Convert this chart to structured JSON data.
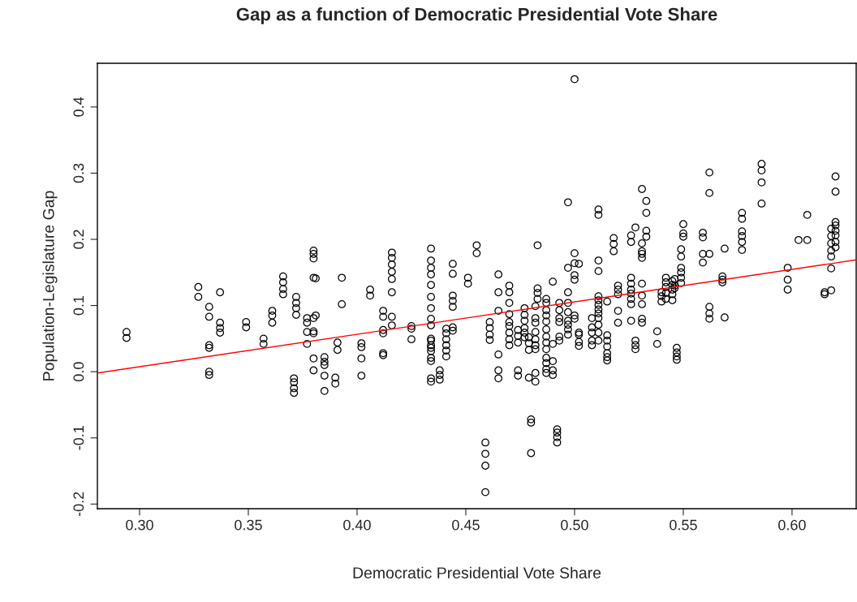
{
  "chart_data": {
    "type": "scatter",
    "title": "Gap as a function of Democratic Presidential Vote Share",
    "xlabel": "Democratic Presidential Vote Share",
    "ylabel": "Population-Legislature Gap",
    "xlim": [
      0.2806,
      0.6295
    ],
    "ylim": [
      -0.207,
      0.466
    ],
    "xticks": [
      {
        "value": 0.3,
        "label": "0.30"
      },
      {
        "value": 0.35,
        "label": "0.35"
      },
      {
        "value": 0.4,
        "label": "0.40"
      },
      {
        "value": 0.45,
        "label": "0.45"
      },
      {
        "value": 0.5,
        "label": "0.50"
      },
      {
        "value": 0.55,
        "label": "0.55"
      },
      {
        "value": 0.6,
        "label": "0.60"
      }
    ],
    "yticks": [
      {
        "value": -0.2,
        "label": "-0.2"
      },
      {
        "value": -0.1,
        "label": "-0.1"
      },
      {
        "value": 0.0,
        "label": "0.0"
      },
      {
        "value": 0.1,
        "label": "0.1"
      },
      {
        "value": 0.2,
        "label": "0.2"
      },
      {
        "value": 0.3,
        "label": "0.3"
      },
      {
        "value": 0.4,
        "label": "0.4"
      }
    ],
    "grid": false,
    "legend": false,
    "series": [
      {
        "marker": "circle",
        "color": "#000000",
        "x": [
          0.294,
          0.294,
          0.327,
          0.327,
          0.332,
          0.332,
          0.332,
          0.332,
          0.332,
          0.332,
          0.337,
          0.337,
          0.337,
          0.337,
          0.349,
          0.349,
          0.357,
          0.357,
          0.361,
          0.361,
          0.361,
          0.366,
          0.366,
          0.366,
          0.366,
          0.371,
          0.371,
          0.371,
          0.371,
          0.372,
          0.372,
          0.372,
          0.372,
          0.377,
          0.377,
          0.377,
          0.377,
          0.38,
          0.38,
          0.38,
          0.38,
          0.38,
          0.38,
          0.38,
          0.38,
          0.38,
          0.381,
          0.381,
          0.385,
          0.385,
          0.385,
          0.385,
          0.385,
          0.39,
          0.39,
          0.391,
          0.391,
          0.393,
          0.393,
          0.402,
          0.402,
          0.402,
          0.402,
          0.406,
          0.406,
          0.412,
          0.412,
          0.412,
          0.412,
          0.412,
          0.412,
          0.416,
          0.416,
          0.416,
          0.416,
          0.416,
          0.416,
          0.416,
          0.416,
          0.425,
          0.425,
          0.425,
          0.434,
          0.434,
          0.434,
          0.434,
          0.434,
          0.434,
          0.434,
          0.434,
          0.434,
          0.434,
          0.434,
          0.434,
          0.434,
          0.434,
          0.434,
          0.434,
          0.434,
          0.434,
          0.438,
          0.438,
          0.438,
          0.441,
          0.441,
          0.441,
          0.441,
          0.441,
          0.441,
          0.444,
          0.444,
          0.444,
          0.444,
          0.444,
          0.444,
          0.444,
          0.451,
          0.451,
          0.455,
          0.455,
          0.459,
          0.459,
          0.459,
          0.459,
          0.461,
          0.461,
          0.461,
          0.461,
          0.465,
          0.465,
          0.465,
          0.465,
          0.465,
          0.465,
          0.47,
          0.47,
          0.47,
          0.47,
          0.47,
          0.47,
          0.47,
          0.47,
          0.47,
          0.474,
          0.474,
          0.474,
          0.474,
          0.474,
          0.477,
          0.477,
          0.477,
          0.477,
          0.477,
          0.477,
          0.479,
          0.479,
          0.479,
          0.479,
          0.48,
          0.48,
          0.48,
          0.482,
          0.482,
          0.482,
          0.482,
          0.482,
          0.482,
          0.482,
          0.482,
          0.482,
          0.483,
          0.483,
          0.483,
          0.483,
          0.487,
          0.487,
          0.487,
          0.487,
          0.487,
          0.487,
          0.487,
          0.487,
          0.487,
          0.487,
          0.487,
          0.487,
          0.487,
          0.49,
          0.49,
          0.49,
          0.49,
          0.49,
          0.492,
          0.492,
          0.492,
          0.492,
          0.493,
          0.493,
          0.493,
          0.493,
          0.493,
          0.493,
          0.497,
          0.497,
          0.497,
          0.497,
          0.497,
          0.497,
          0.497,
          0.497,
          0.497,
          0.5,
          0.5,
          0.5,
          0.5,
          0.5,
          0.5,
          0.5,
          0.502,
          0.502,
          0.502,
          0.502,
          0.502,
          0.508,
          0.508,
          0.508,
          0.508,
          0.508,
          0.511,
          0.511,
          0.511,
          0.511,
          0.511,
          0.511,
          0.511,
          0.511,
          0.511,
          0.511,
          0.511,
          0.511,
          0.511,
          0.515,
          0.515,
          0.515,
          0.515,
          0.515,
          0.515,
          0.515,
          0.518,
          0.518,
          0.518,
          0.52,
          0.52,
          0.52,
          0.52,
          0.52,
          0.526,
          0.526,
          0.526,
          0.526,
          0.526,
          0.526,
          0.526,
          0.526,
          0.526,
          0.528,
          0.528,
          0.528,
          0.528,
          0.531,
          0.531,
          0.531,
          0.531,
          0.531,
          0.531,
          0.531,
          0.531,
          0.531,
          0.531,
          0.533,
          0.533,
          0.533,
          0.533,
          0.538,
          0.538,
          0.54,
          0.54,
          0.54,
          0.542,
          0.542,
          0.542,
          0.542,
          0.542,
          0.545,
          0.545,
          0.545,
          0.545,
          0.545,
          0.546,
          0.546,
          0.546,
          0.547,
          0.547,
          0.547,
          0.547,
          0.549,
          0.549,
          0.549,
          0.549,
          0.549,
          0.549,
          0.55,
          0.55,
          0.55,
          0.559,
          0.559,
          0.559,
          0.559,
          0.562,
          0.562,
          0.562,
          0.562,
          0.562,
          0.562,
          0.568,
          0.568,
          0.568,
          0.569,
          0.569,
          0.577,
          0.577,
          0.577,
          0.577,
          0.577,
          0.577,
          0.586,
          0.586,
          0.586,
          0.586,
          0.598,
          0.598,
          0.598,
          0.603,
          0.607,
          0.607,
          0.615,
          0.615,
          0.618,
          0.618,
          0.618,
          0.618,
          0.618,
          0.618,
          0.618,
          0.62,
          0.62,
          0.62,
          0.62,
          0.62,
          0.62,
          0.62,
          0.62
        ],
        "values": [
          0.06,
          0.051,
          0.128,
          0.113,
          0.098,
          0.083,
          0.04,
          0.036,
          0.0,
          -0.005,
          0.12,
          0.074,
          0.066,
          0.059,
          0.075,
          0.067,
          0.05,
          0.042,
          0.092,
          0.085,
          0.074,
          0.144,
          0.135,
          0.125,
          0.117,
          -0.01,
          -0.016,
          -0.025,
          -0.032,
          0.113,
          0.104,
          0.096,
          0.086,
          0.081,
          0.074,
          0.06,
          0.042,
          0.183,
          0.178,
          0.171,
          0.142,
          0.081,
          0.061,
          0.058,
          0.02,
          0.002,
          0.085,
          0.141,
          -0.029,
          0.01,
          0.015,
          0.022,
          -0.006,
          -0.009,
          -0.018,
          0.044,
          0.033,
          0.142,
          0.102,
          0.043,
          0.037,
          0.02,
          -0.006,
          0.124,
          0.115,
          0.092,
          0.083,
          0.063,
          0.058,
          0.028,
          0.025,
          0.18,
          0.172,
          0.162,
          0.151,
          0.14,
          0.12,
          0.083,
          0.07,
          0.069,
          0.065,
          0.049,
          0.186,
          0.168,
          0.157,
          0.147,
          0.131,
          0.113,
          0.096,
          0.08,
          0.07,
          0.05,
          0.047,
          0.04,
          0.036,
          0.031,
          0.021,
          0.016,
          -0.01,
          -0.015,
          0.002,
          -0.005,
          -0.012,
          0.065,
          0.058,
          0.049,
          0.04,
          0.032,
          0.023,
          0.163,
          0.148,
          0.115,
          0.107,
          0.098,
          0.067,
          0.062,
          0.142,
          0.133,
          0.191,
          0.179,
          -0.107,
          -0.124,
          -0.142,
          -0.182,
          0.075,
          0.066,
          0.056,
          0.048,
          0.147,
          0.12,
          0.092,
          0.026,
          0.002,
          -0.01,
          0.13,
          0.12,
          0.104,
          0.087,
          0.075,
          0.069,
          0.059,
          0.049,
          0.04,
          0.063,
          0.054,
          0.044,
          0.002,
          -0.006,
          0.096,
          0.086,
          0.077,
          0.066,
          0.059,
          0.052,
          0.052,
          0.043,
          0.033,
          -0.009,
          -0.072,
          -0.077,
          -0.123,
          0.099,
          0.081,
          0.074,
          0.06,
          0.049,
          0.04,
          0.034,
          -0.002,
          -0.015,
          0.191,
          0.126,
          0.119,
          0.11,
          0.11,
          0.104,
          0.093,
          0.085,
          0.076,
          0.064,
          0.053,
          0.044,
          0.034,
          0.021,
          0.013,
          0.004,
          -0.002,
          0.136,
          0.042,
          0.016,
          0.002,
          -0.005,
          -0.087,
          -0.092,
          -0.099,
          -0.107,
          0.104,
          0.093,
          0.081,
          0.075,
          0.053,
          0.047,
          0.256,
          0.157,
          0.12,
          0.104,
          0.09,
          0.077,
          0.071,
          0.064,
          0.056,
          0.442,
          0.179,
          0.164,
          0.146,
          0.139,
          0.085,
          0.08,
          0.163,
          0.056,
          0.045,
          0.039,
          0.059,
          0.081,
          0.067,
          0.059,
          0.047,
          0.04,
          0.245,
          0.237,
          0.168,
          0.152,
          0.114,
          0.108,
          0.101,
          0.094,
          0.088,
          0.081,
          0.071,
          0.059,
          0.047,
          0.106,
          0.055,
          0.047,
          0.038,
          0.028,
          0.022,
          0.017,
          0.202,
          0.193,
          0.182,
          0.13,
          0.124,
          0.117,
          0.092,
          0.074,
          0.206,
          0.196,
          0.142,
          0.133,
          0.124,
          0.118,
          0.11,
          0.102,
          0.077,
          0.218,
          0.047,
          0.04,
          0.034,
          0.276,
          0.194,
          0.182,
          0.178,
          0.172,
          0.133,
          0.115,
          0.102,
          0.08,
          0.074,
          0.258,
          0.24,
          0.213,
          0.204,
          0.061,
          0.042,
          0.12,
          0.114,
          0.106,
          0.142,
          0.135,
          0.128,
          0.119,
          0.11,
          0.137,
          0.131,
          0.124,
          0.117,
          0.108,
          0.14,
          0.13,
          0.126,
          0.036,
          0.029,
          0.023,
          0.018,
          0.157,
          0.15,
          0.142,
          0.134,
          0.174,
          0.185,
          0.223,
          0.209,
          0.204,
          0.21,
          0.203,
          0.178,
          0.165,
          0.301,
          0.27,
          0.178,
          0.098,
          0.088,
          0.08,
          0.144,
          0.139,
          0.135,
          0.186,
          0.082,
          0.24,
          0.231,
          0.212,
          0.205,
          0.196,
          0.184,
          0.314,
          0.304,
          0.286,
          0.254,
          0.157,
          0.139,
          0.124,
          0.199,
          0.237,
          0.199,
          0.12,
          0.117,
          0.216,
          0.205,
          0.194,
          0.183,
          0.174,
          0.156,
          0.123,
          0.295,
          0.272,
          0.226,
          0.221,
          0.213,
          0.206,
          0.196,
          0.188
        ]
      },
      {
        "type": "line",
        "marker": "none",
        "color": "#ff0000",
        "x": [
          0.2806,
          0.6295
        ],
        "values": [
          -0.002,
          0.169
        ]
      }
    ]
  }
}
